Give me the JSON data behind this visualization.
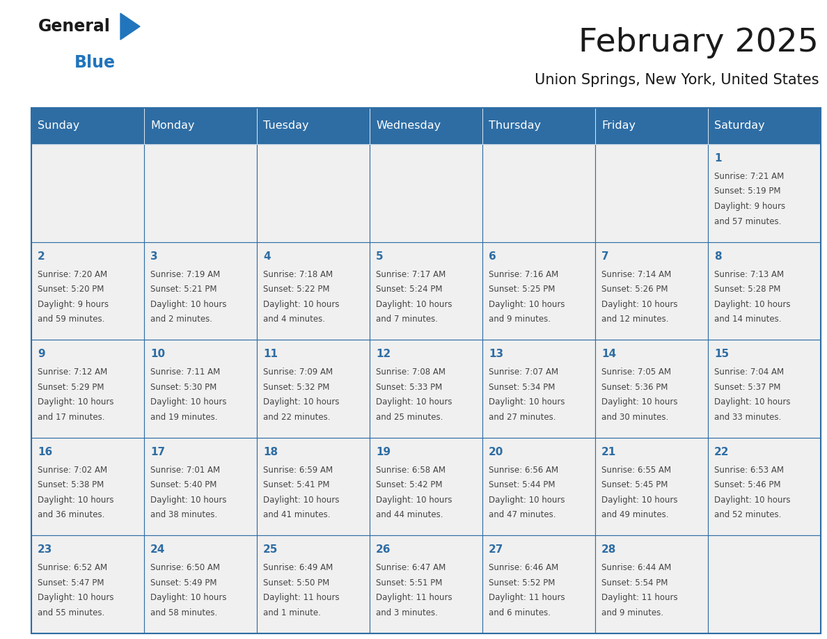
{
  "title": "February 2025",
  "subtitle": "Union Springs, New York, United States",
  "header_bg": "#2E6DA4",
  "header_text_color": "#FFFFFF",
  "cell_bg": "#F0F0F0",
  "cell_border_color": "#2E6DA4",
  "day_headers": [
    "Sunday",
    "Monday",
    "Tuesday",
    "Wednesday",
    "Thursday",
    "Friday",
    "Saturday"
  ],
  "title_color": "#1a1a1a",
  "subtitle_color": "#1a1a1a",
  "cell_text_color": "#444444",
  "day_num_color": "#2E6DA4",
  "logo_general_color": "#1a1a1a",
  "logo_blue_color": "#2175BC",
  "weeks": [
    [
      {
        "day": "",
        "lines": []
      },
      {
        "day": "",
        "lines": []
      },
      {
        "day": "",
        "lines": []
      },
      {
        "day": "",
        "lines": []
      },
      {
        "day": "",
        "lines": []
      },
      {
        "day": "",
        "lines": []
      },
      {
        "day": "1",
        "lines": [
          "Sunrise: 7:21 AM",
          "Sunset: 5:19 PM",
          "Daylight: 9 hours",
          "and 57 minutes."
        ]
      }
    ],
    [
      {
        "day": "2",
        "lines": [
          "Sunrise: 7:20 AM",
          "Sunset: 5:20 PM",
          "Daylight: 9 hours",
          "and 59 minutes."
        ]
      },
      {
        "day": "3",
        "lines": [
          "Sunrise: 7:19 AM",
          "Sunset: 5:21 PM",
          "Daylight: 10 hours",
          "and 2 minutes."
        ]
      },
      {
        "day": "4",
        "lines": [
          "Sunrise: 7:18 AM",
          "Sunset: 5:22 PM",
          "Daylight: 10 hours",
          "and 4 minutes."
        ]
      },
      {
        "day": "5",
        "lines": [
          "Sunrise: 7:17 AM",
          "Sunset: 5:24 PM",
          "Daylight: 10 hours",
          "and 7 minutes."
        ]
      },
      {
        "day": "6",
        "lines": [
          "Sunrise: 7:16 AM",
          "Sunset: 5:25 PM",
          "Daylight: 10 hours",
          "and 9 minutes."
        ]
      },
      {
        "day": "7",
        "lines": [
          "Sunrise: 7:14 AM",
          "Sunset: 5:26 PM",
          "Daylight: 10 hours",
          "and 12 minutes."
        ]
      },
      {
        "day": "8",
        "lines": [
          "Sunrise: 7:13 AM",
          "Sunset: 5:28 PM",
          "Daylight: 10 hours",
          "and 14 minutes."
        ]
      }
    ],
    [
      {
        "day": "9",
        "lines": [
          "Sunrise: 7:12 AM",
          "Sunset: 5:29 PM",
          "Daylight: 10 hours",
          "and 17 minutes."
        ]
      },
      {
        "day": "10",
        "lines": [
          "Sunrise: 7:11 AM",
          "Sunset: 5:30 PM",
          "Daylight: 10 hours",
          "and 19 minutes."
        ]
      },
      {
        "day": "11",
        "lines": [
          "Sunrise: 7:09 AM",
          "Sunset: 5:32 PM",
          "Daylight: 10 hours",
          "and 22 minutes."
        ]
      },
      {
        "day": "12",
        "lines": [
          "Sunrise: 7:08 AM",
          "Sunset: 5:33 PM",
          "Daylight: 10 hours",
          "and 25 minutes."
        ]
      },
      {
        "day": "13",
        "lines": [
          "Sunrise: 7:07 AM",
          "Sunset: 5:34 PM",
          "Daylight: 10 hours",
          "and 27 minutes."
        ]
      },
      {
        "day": "14",
        "lines": [
          "Sunrise: 7:05 AM",
          "Sunset: 5:36 PM",
          "Daylight: 10 hours",
          "and 30 minutes."
        ]
      },
      {
        "day": "15",
        "lines": [
          "Sunrise: 7:04 AM",
          "Sunset: 5:37 PM",
          "Daylight: 10 hours",
          "and 33 minutes."
        ]
      }
    ],
    [
      {
        "day": "16",
        "lines": [
          "Sunrise: 7:02 AM",
          "Sunset: 5:38 PM",
          "Daylight: 10 hours",
          "and 36 minutes."
        ]
      },
      {
        "day": "17",
        "lines": [
          "Sunrise: 7:01 AM",
          "Sunset: 5:40 PM",
          "Daylight: 10 hours",
          "and 38 minutes."
        ]
      },
      {
        "day": "18",
        "lines": [
          "Sunrise: 6:59 AM",
          "Sunset: 5:41 PM",
          "Daylight: 10 hours",
          "and 41 minutes."
        ]
      },
      {
        "day": "19",
        "lines": [
          "Sunrise: 6:58 AM",
          "Sunset: 5:42 PM",
          "Daylight: 10 hours",
          "and 44 minutes."
        ]
      },
      {
        "day": "20",
        "lines": [
          "Sunrise: 6:56 AM",
          "Sunset: 5:44 PM",
          "Daylight: 10 hours",
          "and 47 minutes."
        ]
      },
      {
        "day": "21",
        "lines": [
          "Sunrise: 6:55 AM",
          "Sunset: 5:45 PM",
          "Daylight: 10 hours",
          "and 49 minutes."
        ]
      },
      {
        "day": "22",
        "lines": [
          "Sunrise: 6:53 AM",
          "Sunset: 5:46 PM",
          "Daylight: 10 hours",
          "and 52 minutes."
        ]
      }
    ],
    [
      {
        "day": "23",
        "lines": [
          "Sunrise: 6:52 AM",
          "Sunset: 5:47 PM",
          "Daylight: 10 hours",
          "and 55 minutes."
        ]
      },
      {
        "day": "24",
        "lines": [
          "Sunrise: 6:50 AM",
          "Sunset: 5:49 PM",
          "Daylight: 10 hours",
          "and 58 minutes."
        ]
      },
      {
        "day": "25",
        "lines": [
          "Sunrise: 6:49 AM",
          "Sunset: 5:50 PM",
          "Daylight: 11 hours",
          "and 1 minute."
        ]
      },
      {
        "day": "26",
        "lines": [
          "Sunrise: 6:47 AM",
          "Sunset: 5:51 PM",
          "Daylight: 11 hours",
          "and 3 minutes."
        ]
      },
      {
        "day": "27",
        "lines": [
          "Sunrise: 6:46 AM",
          "Sunset: 5:52 PM",
          "Daylight: 11 hours",
          "and 6 minutes."
        ]
      },
      {
        "day": "28",
        "lines": [
          "Sunrise: 6:44 AM",
          "Sunset: 5:54 PM",
          "Daylight: 11 hours",
          "and 9 minutes."
        ]
      },
      {
        "day": "",
        "lines": []
      }
    ]
  ]
}
